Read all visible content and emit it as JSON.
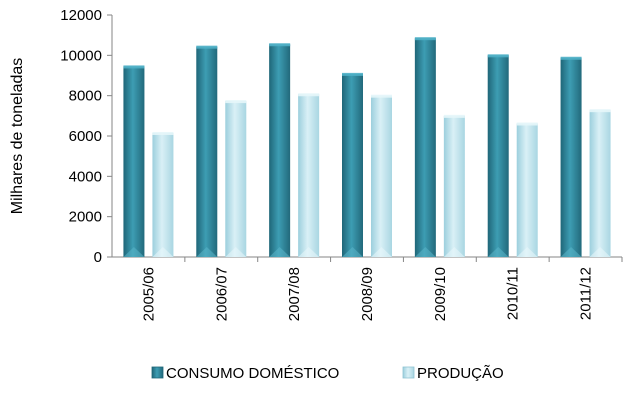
{
  "chart_data": {
    "type": "bar",
    "title": "",
    "xlabel": "",
    "ylabel": "Milhares de toneladas",
    "ylim": [
      0,
      12000
    ],
    "yticks": [
      0,
      2000,
      4000,
      6000,
      8000,
      10000,
      12000
    ],
    "categories": [
      "2005/06",
      "2006/07",
      "2007/08",
      "2008/09",
      "2009/10",
      "2010/11",
      "2011/12"
    ],
    "series": [
      {
        "name": "CONSUMO DOMÉSTICO",
        "color": "#2e8296",
        "values": [
          9450,
          10430,
          10550,
          9080,
          10850,
          10000,
          9880
        ]
      },
      {
        "name": "PRODUÇÃO",
        "color": "#b3dbe6",
        "values": [
          6150,
          7730,
          8070,
          8000,
          7000,
          6620,
          7280
        ]
      }
    ],
    "legend_position": "bottom",
    "grid": false
  }
}
